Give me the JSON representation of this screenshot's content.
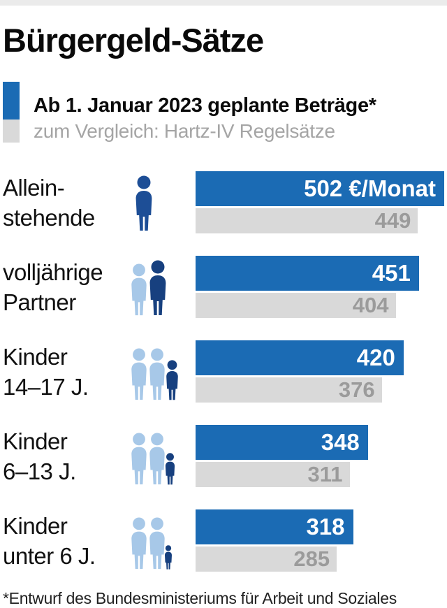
{
  "header": {
    "title": "Bürgergeld-Sätze"
  },
  "legend": {
    "planned_label": "Ab 1. Januar 2023 geplante Beträge*",
    "compare_label": "zum Vergleich: Hartz-IV Regelsätze"
  },
  "footnote": "*Entwurf des Bundesministeriums für Arbeit und Soziales",
  "colors": {
    "bar_blue": "#1b6bb4",
    "bar_gray": "#d9d9d9",
    "gray_number": "#9b9b9b",
    "icon_single_blue": "#1d4e96",
    "icon_navy": "#17407f",
    "icon_light_blue": "#a7c8e8",
    "top_strip": "#ebebeb"
  },
  "chart_data": {
    "type": "bar",
    "title": "Bürgergeld-Sätze",
    "unit": "€/Monat",
    "orientation": "horizontal",
    "xlim": [
      0,
      502
    ],
    "legend_position": "top-left",
    "grid": false,
    "categories": [
      "Alleinstehende",
      "volljährige Partner",
      "Kinder 14–17 J.",
      "Kinder 6–13 J.",
      "Kinder unter 6 J."
    ],
    "series": [
      {
        "name": "Ab 1. Januar 2023 geplante Beträge*",
        "values": [
          502,
          451,
          420,
          348,
          318
        ],
        "color": "#1b6bb4"
      },
      {
        "name": "zum Vergleich: Hartz-IV Regelsätze",
        "values": [
          449,
          404,
          376,
          311,
          285
        ],
        "color": "#d9d9d9"
      }
    ],
    "max_value": 502,
    "rows": [
      {
        "label_lines": [
          "Allein-",
          "stehende"
        ],
        "planned": 502,
        "planned_display": "502 €/Monat",
        "hartz4": 449,
        "hartz4_display": "449",
        "icon_name": "single-adult-icon",
        "figures": [
          {
            "kind": "adult",
            "tone": "single_blue"
          }
        ]
      },
      {
        "label_lines": [
          "volljährige",
          "Partner"
        ],
        "planned": 451,
        "planned_display": "451",
        "hartz4": 404,
        "hartz4_display": "404",
        "icon_name": "adult-couple-icon",
        "figures": [
          {
            "kind": "adult",
            "tone": "light"
          },
          {
            "kind": "adult",
            "tone": "navy"
          }
        ]
      },
      {
        "label_lines": [
          "Kinder",
          "14–17 J."
        ],
        "planned": 420,
        "planned_display": "420",
        "hartz4": 376,
        "hartz4_display": "376",
        "icon_name": "family-teen-child-icon",
        "figures": [
          {
            "kind": "adult",
            "tone": "light"
          },
          {
            "kind": "adult",
            "tone": "light"
          },
          {
            "kind": "child_large",
            "tone": "navy"
          }
        ]
      },
      {
        "label_lines": [
          "Kinder",
          "6–13 J."
        ],
        "planned": 348,
        "planned_display": "348",
        "hartz4": 311,
        "hartz4_display": "311",
        "icon_name": "family-school-child-icon",
        "figures": [
          {
            "kind": "adult",
            "tone": "light"
          },
          {
            "kind": "adult",
            "tone": "light"
          },
          {
            "kind": "child_medium",
            "tone": "navy"
          }
        ]
      },
      {
        "label_lines": [
          "Kinder",
          "unter 6 J."
        ],
        "planned": 318,
        "planned_display": "318",
        "hartz4": 285,
        "hartz4_display": "285",
        "icon_name": "family-small-child-icon",
        "figures": [
          {
            "kind": "adult",
            "tone": "light"
          },
          {
            "kind": "adult",
            "tone": "light"
          },
          {
            "kind": "child_small",
            "tone": "navy"
          }
        ]
      }
    ]
  }
}
